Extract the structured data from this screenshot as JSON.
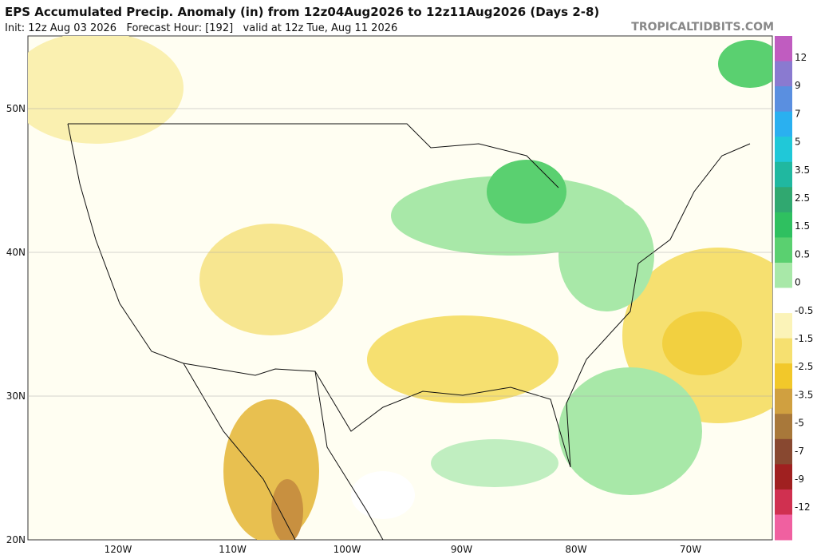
{
  "header": {
    "title": "EPS Accumulated Precip. Anomaly (in) from 12z04Aug2026 to 12z11Aug2026 (Days 2-8)",
    "subtitle": "Init: 12z Aug 03 2026   Forecast Hour: [192]   valid at 12z Tue, Aug 11 2026",
    "credit": "TROPICALTIDBITS.COM"
  },
  "map": {
    "lat_labels": [
      "50N",
      "40N",
      "30N",
      "20N"
    ],
    "lon_labels": [
      "120W",
      "110W",
      "100W",
      "90W",
      "80W",
      "70W"
    ]
  },
  "colorbar": {
    "labels": [
      "12",
      "9",
      "7",
      "5",
      "3.5",
      "2.5",
      "1.5",
      "0.5",
      "0",
      "-0.5",
      "-1.5",
      "-2.5",
      "-3.5",
      "-5",
      "-7",
      "-9",
      "-12"
    ],
    "colors": [
      "#c05cc0",
      "#8a7ad0",
      "#5a8fe0",
      "#2ab0f0",
      "#20c8d8",
      "#20b8a0",
      "#30a870",
      "#2fc060",
      "#5ad070",
      "#a8e8a8",
      "#ffffff",
      "#fbf3b8",
      "#f6e070",
      "#f2c82a",
      "#d0a040",
      "#a8783a",
      "#884830",
      "#a02020",
      "#d03050",
      "#f060a0"
    ]
  }
}
